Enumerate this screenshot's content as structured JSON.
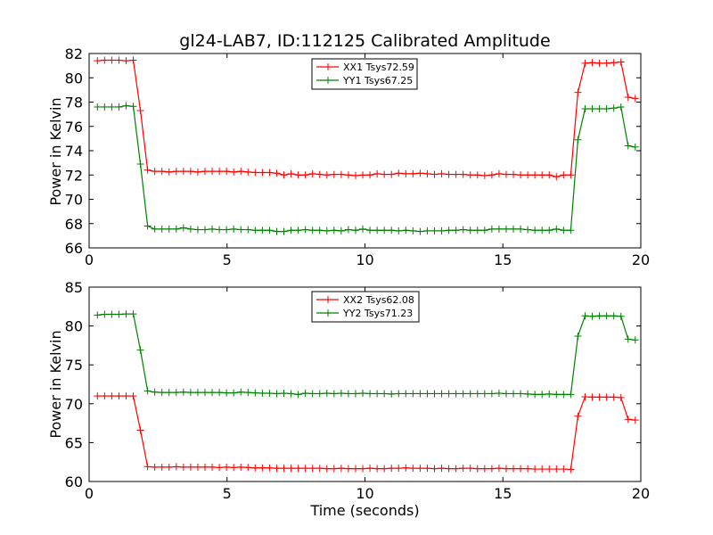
{
  "chart_data": [
    {
      "type": "line",
      "title": "gl24-LAB7, ID:112125 Calibrated Amplitude",
      "xlabel": "",
      "ylabel": "Power in Kelvin",
      "xlim": [
        0,
        20
      ],
      "ylim": [
        66,
        82
      ],
      "xticks": [
        "0",
        "5",
        "10",
        "15",
        "20"
      ],
      "yticks": [
        "66",
        "68",
        "70",
        "72",
        "74",
        "76",
        "78",
        "80",
        "82"
      ],
      "grid": false,
      "legend_position": "top-center",
      "x": [
        0.3,
        0.56,
        0.82,
        1.08,
        1.34,
        1.6,
        1.86,
        2.12,
        2.38,
        2.64,
        2.9,
        3.16,
        3.42,
        3.68,
        3.94,
        4.2,
        4.46,
        4.72,
        4.98,
        5.24,
        5.5,
        5.76,
        6.02,
        6.28,
        6.54,
        6.8,
        7.06,
        7.32,
        7.58,
        7.84,
        8.1,
        8.36,
        8.62,
        8.88,
        9.14,
        9.4,
        9.66,
        9.92,
        10.18,
        10.44,
        10.7,
        10.96,
        11.22,
        11.48,
        11.74,
        12.0,
        12.26,
        12.52,
        12.78,
        13.04,
        13.3,
        13.56,
        13.82,
        14.08,
        14.34,
        14.6,
        14.86,
        15.12,
        15.38,
        15.64,
        15.9,
        16.16,
        16.42,
        16.68,
        16.94,
        17.2,
        17.46,
        17.72,
        17.98,
        18.24,
        18.5,
        18.76,
        19.02,
        19.28,
        19.54,
        19.8
      ],
      "series": [
        {
          "name": "XX1 Tsys72.59",
          "color": "#ff0000",
          "values": [
            81.4,
            81.45,
            81.45,
            81.45,
            81.4,
            81.45,
            77.3,
            72.4,
            72.3,
            72.3,
            72.25,
            72.3,
            72.3,
            72.3,
            72.25,
            72.3,
            72.3,
            72.3,
            72.3,
            72.25,
            72.3,
            72.25,
            72.2,
            72.2,
            72.2,
            72.15,
            72.0,
            72.1,
            72.0,
            72.0,
            72.1,
            72.05,
            72.0,
            72.05,
            72.05,
            72.0,
            71.95,
            72.0,
            72.0,
            72.1,
            72.05,
            72.05,
            72.15,
            72.1,
            72.1,
            72.15,
            72.1,
            72.05,
            72.1,
            72.05,
            72.05,
            72.05,
            72.0,
            72.0,
            71.95,
            72.0,
            72.1,
            72.05,
            72.05,
            72.0,
            72.0,
            72.0,
            72.0,
            72.0,
            71.85,
            72.0,
            72.0,
            78.8,
            81.2,
            81.25,
            81.2,
            81.2,
            81.25,
            81.3,
            78.4,
            78.3
          ]
        },
        {
          "name": "YY1 Tsys67.25",
          "color": "#008000",
          "values": [
            77.6,
            77.6,
            77.6,
            77.6,
            77.7,
            77.65,
            72.9,
            67.8,
            67.55,
            67.55,
            67.55,
            67.55,
            67.65,
            67.55,
            67.5,
            67.5,
            67.55,
            67.5,
            67.5,
            67.55,
            67.5,
            67.5,
            67.45,
            67.45,
            67.45,
            67.35,
            67.35,
            67.45,
            67.45,
            67.5,
            67.45,
            67.45,
            67.4,
            67.45,
            67.4,
            67.5,
            67.45,
            67.55,
            67.45,
            67.45,
            67.45,
            67.45,
            67.4,
            67.45,
            67.4,
            67.35,
            67.4,
            67.4,
            67.4,
            67.45,
            67.45,
            67.5,
            67.45,
            67.45,
            67.45,
            67.55,
            67.55,
            67.55,
            67.55,
            67.55,
            67.5,
            67.45,
            67.45,
            67.45,
            67.55,
            67.45,
            67.45,
            74.9,
            77.45,
            77.45,
            77.45,
            77.45,
            77.5,
            77.6,
            74.4,
            74.3
          ]
        }
      ]
    },
    {
      "type": "line",
      "title": "",
      "xlabel": "Time (seconds)",
      "ylabel": "Power in Kelvin",
      "xlim": [
        0,
        20
      ],
      "ylim": [
        60,
        85
      ],
      "xticks": [
        "0",
        "5",
        "10",
        "15",
        "20"
      ],
      "yticks": [
        "60",
        "65",
        "70",
        "75",
        "80",
        "85"
      ],
      "grid": false,
      "legend_position": "top-center",
      "x": [
        0.3,
        0.56,
        0.82,
        1.08,
        1.34,
        1.6,
        1.86,
        2.12,
        2.38,
        2.64,
        2.9,
        3.16,
        3.42,
        3.68,
        3.94,
        4.2,
        4.46,
        4.72,
        4.98,
        5.24,
        5.5,
        5.76,
        6.02,
        6.28,
        6.54,
        6.8,
        7.06,
        7.32,
        7.58,
        7.84,
        8.1,
        8.36,
        8.62,
        8.88,
        9.14,
        9.4,
        9.66,
        9.92,
        10.18,
        10.44,
        10.7,
        10.96,
        11.22,
        11.48,
        11.74,
        12.0,
        12.26,
        12.52,
        12.78,
        13.04,
        13.3,
        13.56,
        13.82,
        14.08,
        14.34,
        14.6,
        14.86,
        15.12,
        15.38,
        15.64,
        15.9,
        16.16,
        16.42,
        16.68,
        16.94,
        17.2,
        17.46,
        17.72,
        17.98,
        18.24,
        18.5,
        18.76,
        19.02,
        19.28,
        19.54,
        19.8
      ],
      "series": [
        {
          "name": "XX2 Tsys62.08",
          "color": "#ff0000",
          "values": [
            71.0,
            71.0,
            71.0,
            71.0,
            71.0,
            71.0,
            66.6,
            61.9,
            61.85,
            61.85,
            61.85,
            61.9,
            61.85,
            61.85,
            61.85,
            61.85,
            61.85,
            61.8,
            61.85,
            61.8,
            61.85,
            61.8,
            61.75,
            61.75,
            61.75,
            61.7,
            61.7,
            61.7,
            61.7,
            61.7,
            61.7,
            61.7,
            61.65,
            61.65,
            61.7,
            61.65,
            61.65,
            61.65,
            61.7,
            61.65,
            61.65,
            61.7,
            61.7,
            61.75,
            61.7,
            61.7,
            61.7,
            61.65,
            61.7,
            61.65,
            61.65,
            61.7,
            61.7,
            61.65,
            61.65,
            61.65,
            61.7,
            61.65,
            61.65,
            61.65,
            61.65,
            61.6,
            61.6,
            61.6,
            61.6,
            61.6,
            61.55,
            68.4,
            70.9,
            70.85,
            70.85,
            70.85,
            70.85,
            70.8,
            68.0,
            67.9
          ]
        },
        {
          "name": "YY2 Tsys71.23",
          "color": "#008000",
          "values": [
            81.4,
            81.5,
            81.5,
            81.5,
            81.55,
            81.55,
            76.9,
            71.65,
            71.5,
            71.45,
            71.45,
            71.45,
            71.5,
            71.45,
            71.45,
            71.45,
            71.45,
            71.45,
            71.4,
            71.4,
            71.5,
            71.45,
            71.4,
            71.35,
            71.35,
            71.3,
            71.35,
            71.3,
            71.2,
            71.35,
            71.3,
            71.3,
            71.35,
            71.3,
            71.35,
            71.3,
            71.3,
            71.35,
            71.3,
            71.3,
            71.3,
            71.25,
            71.3,
            71.3,
            71.3,
            71.3,
            71.3,
            71.3,
            71.3,
            71.3,
            71.3,
            71.3,
            71.3,
            71.3,
            71.3,
            71.3,
            71.35,
            71.3,
            71.3,
            71.3,
            71.25,
            71.2,
            71.2,
            71.25,
            71.2,
            71.2,
            71.2,
            78.7,
            81.3,
            81.25,
            81.3,
            81.3,
            81.3,
            81.25,
            78.3,
            78.2
          ]
        }
      ]
    }
  ]
}
